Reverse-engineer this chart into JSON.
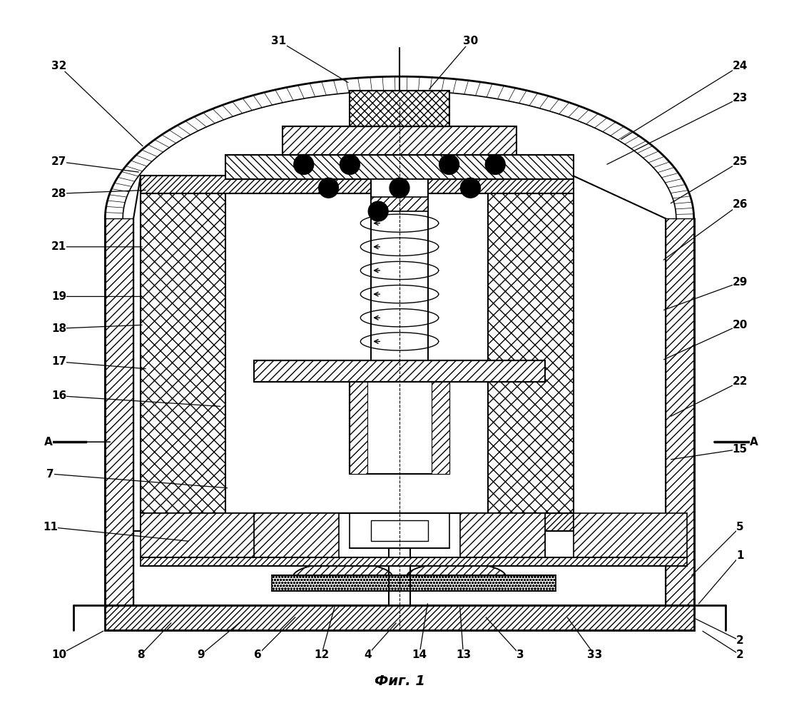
{
  "title": "Фиг. 1",
  "bg": "#ffffff",
  "lc": "#000000"
}
